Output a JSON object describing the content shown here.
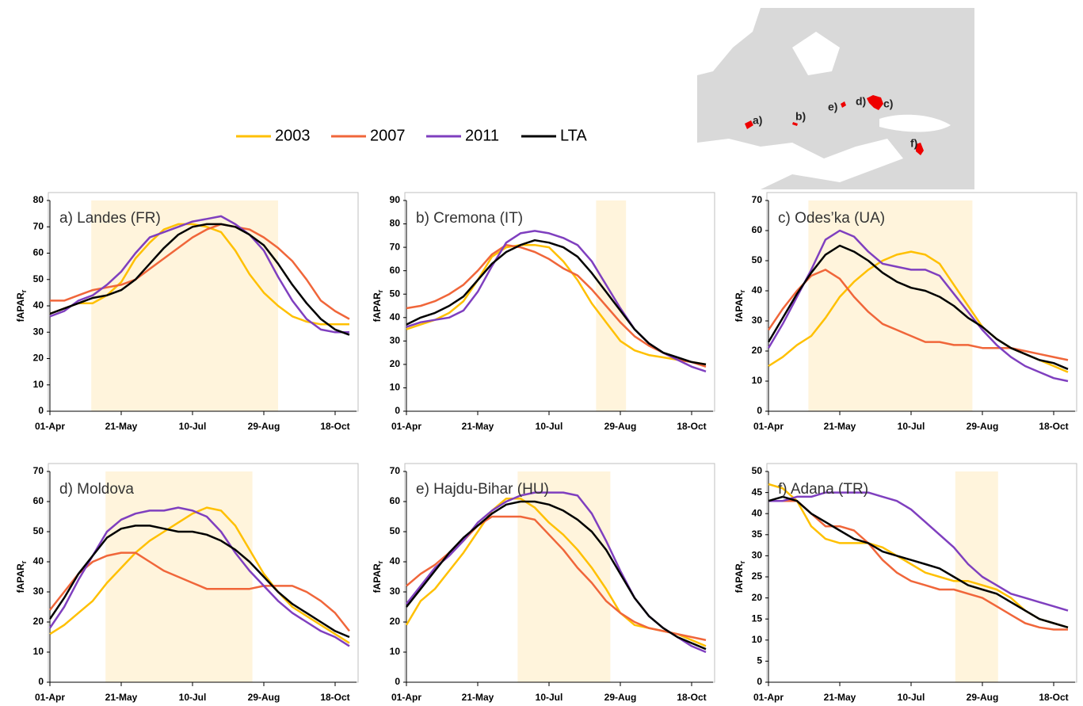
{
  "chart_data": [
    {
      "type": "line",
      "title": "a) Landes (FR)",
      "ylabel": "fAPAR",
      "ylabel_subscript": "r",
      "x": [
        0,
        10,
        20,
        30,
        40,
        50,
        60,
        70,
        80,
        90,
        100,
        110,
        120,
        130,
        140,
        150,
        160,
        170,
        180,
        190,
        200,
        210
      ],
      "xlim": [
        0,
        215
      ],
      "xticks": [
        {
          "value": 0,
          "label": "01-Apr"
        },
        {
          "value": 50,
          "label": "21-May"
        },
        {
          "value": 100,
          "label": "10-Jul"
        },
        {
          "value": 150,
          "label": "29-Aug"
        },
        {
          "value": 200,
          "label": "18-Oct"
        }
      ],
      "ylim": [
        0,
        80
      ],
      "yticks": [
        0,
        10,
        20,
        30,
        40,
        50,
        60,
        70,
        80
      ],
      "highlight": [
        29,
        160
      ],
      "highlight_color": "#fff4dc",
      "series": [
        {
          "name": "2003",
          "color": "#ffc000",
          "values": [
            37,
            39,
            41,
            41,
            44,
            49,
            58,
            64,
            69,
            71,
            71,
            70,
            68,
            61,
            52,
            45,
            40,
            36,
            34,
            33,
            33,
            33
          ]
        },
        {
          "name": "2007",
          "color": "#f0663a",
          "values": [
            42,
            42,
            44,
            46,
            47,
            48,
            50,
            54,
            58,
            62,
            66,
            69,
            71,
            70,
            69,
            66,
            62,
            57,
            50,
            42,
            38,
            35
          ]
        },
        {
          "name": "2011",
          "color": "#7f3fbf",
          "values": [
            36,
            38,
            42,
            44,
            48,
            53,
            60,
            66,
            68,
            70,
            72,
            73,
            74,
            71,
            67,
            61,
            51,
            42,
            35,
            31,
            30,
            30
          ]
        },
        {
          "name": "LTA",
          "color": "#000000",
          "values": [
            37,
            39,
            41,
            43,
            44,
            46,
            50,
            56,
            62,
            67,
            70,
            71,
            71,
            70,
            67,
            63,
            56,
            48,
            41,
            35,
            31,
            29
          ]
        }
      ]
    },
    {
      "type": "line",
      "title": "b) Cremona (IT)",
      "ylabel": "fAPAR",
      "ylabel_subscript": "r",
      "x": [
        0,
        10,
        20,
        30,
        40,
        50,
        60,
        70,
        80,
        90,
        100,
        110,
        120,
        130,
        140,
        150,
        160,
        170,
        180,
        190,
        200,
        210
      ],
      "xlim": [
        0,
        215
      ],
      "xticks": [
        {
          "value": 0,
          "label": "01-Apr"
        },
        {
          "value": 50,
          "label": "21-May"
        },
        {
          "value": 100,
          "label": "10-Jul"
        },
        {
          "value": 150,
          "label": "29-Aug"
        },
        {
          "value": 200,
          "label": "18-Oct"
        }
      ],
      "ylim": [
        0,
        90
      ],
      "yticks": [
        0,
        10,
        20,
        30,
        40,
        50,
        60,
        70,
        80,
        90
      ],
      "highlight": [
        133,
        154
      ],
      "highlight_color": "#fff4dc",
      "series": [
        {
          "name": "2003",
          "color": "#ffc000",
          "values": [
            35,
            37,
            39,
            42,
            47,
            56,
            66,
            70,
            71,
            71,
            70,
            64,
            56,
            46,
            38,
            30,
            26,
            24,
            23,
            22,
            21,
            20
          ]
        },
        {
          "name": "2007",
          "color": "#f0663a",
          "values": [
            44,
            45,
            47,
            50,
            54,
            60,
            67,
            71,
            70,
            68,
            65,
            61,
            58,
            52,
            45,
            38,
            32,
            28,
            25,
            22,
            21,
            19
          ]
        },
        {
          "name": "2011",
          "color": "#7f3fbf",
          "values": [
            36,
            38,
            39,
            40,
            43,
            51,
            62,
            72,
            76,
            77,
            76,
            74,
            71,
            64,
            54,
            44,
            35,
            29,
            25,
            22,
            19,
            17
          ]
        },
        {
          "name": "LTA",
          "color": "#000000",
          "values": [
            37,
            40,
            42,
            45,
            49,
            56,
            63,
            68,
            71,
            73,
            72,
            70,
            66,
            59,
            51,
            43,
            35,
            29,
            25,
            23,
            21,
            20
          ]
        }
      ]
    },
    {
      "type": "line",
      "title": "c) Odes’ka (UA)",
      "ylabel": "fAPAR",
      "ylabel_subscript": "r",
      "x": [
        0,
        10,
        20,
        30,
        40,
        50,
        60,
        70,
        80,
        90,
        100,
        110,
        120,
        130,
        140,
        150,
        160,
        170,
        180,
        190,
        200,
        210
      ],
      "xlim": [
        0,
        215
      ],
      "xticks": [
        {
          "value": 0,
          "label": "01-Apr"
        },
        {
          "value": 50,
          "label": "21-May"
        },
        {
          "value": 100,
          "label": "10-Jul"
        },
        {
          "value": 150,
          "label": "29-Aug"
        },
        {
          "value": 200,
          "label": "18-Oct"
        }
      ],
      "ylim": [
        0,
        70
      ],
      "yticks": [
        0,
        10,
        20,
        30,
        40,
        50,
        60,
        70
      ],
      "highlight": [
        28,
        143
      ],
      "highlight_color": "#fff4dc",
      "series": [
        {
          "name": "2003",
          "color": "#ffc000",
          "values": [
            15,
            18,
            22,
            25,
            31,
            38,
            43,
            47,
            50,
            52,
            53,
            52,
            49,
            42,
            35,
            28,
            24,
            21,
            19,
            17,
            15,
            13
          ]
        },
        {
          "name": "2007",
          "color": "#f0663a",
          "values": [
            27,
            34,
            40,
            45,
            47,
            44,
            38,
            33,
            29,
            27,
            25,
            23,
            23,
            22,
            22,
            21,
            21,
            21,
            20,
            19,
            18,
            17
          ]
        },
        {
          "name": "2011",
          "color": "#7f3fbf",
          "values": [
            21,
            29,
            38,
            47,
            57,
            60,
            58,
            53,
            49,
            48,
            47,
            47,
            45,
            39,
            33,
            27,
            22,
            18,
            15,
            13,
            11,
            10
          ]
        },
        {
          "name": "LTA",
          "color": "#000000",
          "values": [
            23,
            31,
            39,
            46,
            52,
            55,
            53,
            50,
            46,
            43,
            41,
            40,
            38,
            35,
            31,
            28,
            24,
            21,
            19,
            17,
            16,
            14
          ]
        }
      ]
    },
    {
      "type": "line",
      "title": "d) Moldova",
      "ylabel": "fAPAR",
      "ylabel_subscript": "r",
      "x": [
        0,
        10,
        20,
        30,
        40,
        50,
        60,
        70,
        80,
        90,
        100,
        110,
        120,
        130,
        140,
        150,
        160,
        170,
        180,
        190,
        200,
        210
      ],
      "xlim": [
        0,
        215
      ],
      "xticks": [
        {
          "value": 0,
          "label": "01-Apr"
        },
        {
          "value": 50,
          "label": "21-May"
        },
        {
          "value": 100,
          "label": "10-Jul"
        },
        {
          "value": 150,
          "label": "29-Aug"
        },
        {
          "value": 200,
          "label": "18-Oct"
        }
      ],
      "ylim": [
        0,
        70
      ],
      "yticks": [
        0,
        10,
        20,
        30,
        40,
        50,
        60,
        70
      ],
      "highlight": [
        39,
        142
      ],
      "highlight_color": "#fff4dc",
      "series": [
        {
          "name": "2003",
          "color": "#ffc000",
          "values": [
            16,
            19,
            23,
            27,
            33,
            38,
            43,
            47,
            50,
            53,
            56,
            58,
            57,
            52,
            44,
            36,
            30,
            25,
            22,
            19,
            16,
            13
          ]
        },
        {
          "name": "2007",
          "color": "#f0663a",
          "values": [
            24,
            30,
            36,
            40,
            42,
            43,
            43,
            40,
            37,
            35,
            33,
            31,
            31,
            31,
            31,
            32,
            32,
            32,
            30,
            27,
            23,
            17
          ]
        },
        {
          "name": "2011",
          "color": "#7f3fbf",
          "values": [
            18,
            25,
            34,
            42,
            50,
            54,
            56,
            57,
            57,
            58,
            57,
            55,
            50,
            43,
            37,
            32,
            27,
            23,
            20,
            17,
            15,
            12
          ]
        },
        {
          "name": "LTA",
          "color": "#000000",
          "values": [
            21,
            28,
            36,
            42,
            48,
            51,
            52,
            52,
            51,
            50,
            50,
            49,
            47,
            44,
            40,
            35,
            30,
            26,
            23,
            20,
            17,
            15
          ]
        }
      ]
    },
    {
      "type": "line",
      "title": "e) Hajdu-Bihar (HU)",
      "ylabel": "fAPAR",
      "ylabel_subscript": "r",
      "x": [
        0,
        10,
        20,
        30,
        40,
        50,
        60,
        70,
        80,
        90,
        100,
        110,
        120,
        130,
        140,
        150,
        160,
        170,
        180,
        190,
        200,
        210
      ],
      "xlim": [
        0,
        215
      ],
      "xticks": [
        {
          "value": 0,
          "label": "01-Apr"
        },
        {
          "value": 50,
          "label": "21-May"
        },
        {
          "value": 100,
          "label": "10-Jul"
        },
        {
          "value": 150,
          "label": "29-Aug"
        },
        {
          "value": 200,
          "label": "18-Oct"
        }
      ],
      "ylim": [
        0,
        70
      ],
      "yticks": [
        0,
        10,
        20,
        30,
        40,
        50,
        60,
        70
      ],
      "highlight": [
        78,
        143
      ],
      "highlight_color": "#fff4dc",
      "series": [
        {
          "name": "2003",
          "color": "#ffc000",
          "values": [
            19,
            27,
            31,
            37,
            43,
            50,
            57,
            61,
            61,
            58,
            53,
            49,
            44,
            38,
            31,
            23,
            19,
            18,
            17,
            16,
            14,
            12
          ]
        },
        {
          "name": "2007",
          "color": "#f0663a",
          "values": [
            32,
            36,
            39,
            43,
            47,
            52,
            55,
            55,
            55,
            54,
            49,
            44,
            38,
            33,
            27,
            23,
            20,
            18,
            17,
            16,
            15,
            14
          ]
        },
        {
          "name": "2011",
          "color": "#7f3fbf",
          "values": [
            26,
            32,
            38,
            42,
            47,
            53,
            57,
            60,
            62,
            63,
            63,
            63,
            62,
            56,
            47,
            37,
            28,
            22,
            18,
            15,
            12,
            10
          ]
        },
        {
          "name": "LTA",
          "color": "#000000",
          "values": [
            25,
            31,
            37,
            43,
            48,
            52,
            56,
            59,
            60,
            60,
            59,
            57,
            54,
            50,
            44,
            36,
            28,
            22,
            18,
            15,
            13,
            11
          ]
        }
      ]
    },
    {
      "type": "line",
      "title": "f) Adana (TR)",
      "ylabel": "fAPAR",
      "ylabel_subscript": "r",
      "x": [
        0,
        10,
        20,
        30,
        40,
        50,
        60,
        70,
        80,
        90,
        100,
        110,
        120,
        130,
        140,
        150,
        160,
        170,
        180,
        190,
        200,
        210
      ],
      "xlim": [
        0,
        215
      ],
      "xticks": [
        {
          "value": 0,
          "label": "01-Apr"
        },
        {
          "value": 50,
          "label": "21-May"
        },
        {
          "value": 100,
          "label": "10-Jul"
        },
        {
          "value": 150,
          "label": "29-Aug"
        },
        {
          "value": 200,
          "label": "18-Oct"
        }
      ],
      "ylim": [
        0,
        50
      ],
      "yticks": [
        0,
        5,
        10,
        15,
        20,
        25,
        30,
        35,
        40,
        45,
        50
      ],
      "highlight": [
        131,
        161
      ],
      "highlight_color": "#fff4dc",
      "series": [
        {
          "name": "2003",
          "color": "#ffc000",
          "values": [
            47,
            46,
            43,
            37,
            34,
            33,
            33,
            33,
            32,
            30,
            28,
            26,
            25,
            24,
            24,
            23,
            22,
            20,
            17,
            15,
            14,
            13
          ]
        },
        {
          "name": "2007",
          "color": "#f0663a",
          "values": [
            43,
            43,
            43,
            40,
            37,
            37,
            36,
            33,
            29,
            26,
            24,
            23,
            22,
            22,
            21,
            20,
            18,
            16,
            14,
            13,
            12.5,
            12.5
          ]
        },
        {
          "name": "2011",
          "color": "#7f3fbf",
          "values": [
            43,
            43,
            44,
            44,
            45,
            45,
            45,
            45,
            44,
            43,
            41,
            38,
            35,
            32,
            28,
            25,
            23,
            21,
            20,
            19,
            18,
            17
          ]
        },
        {
          "name": "LTA",
          "color": "#000000",
          "values": [
            43,
            44,
            43,
            40,
            38,
            36,
            34,
            33,
            31,
            30,
            29,
            28,
            27,
            25,
            23,
            22,
            21,
            19,
            17,
            15,
            14,
            13
          ]
        }
      ]
    }
  ],
  "map": {
    "labels": [
      "a)",
      "b)",
      "e)",
      "d)",
      "c)",
      "f)"
    ]
  }
}
